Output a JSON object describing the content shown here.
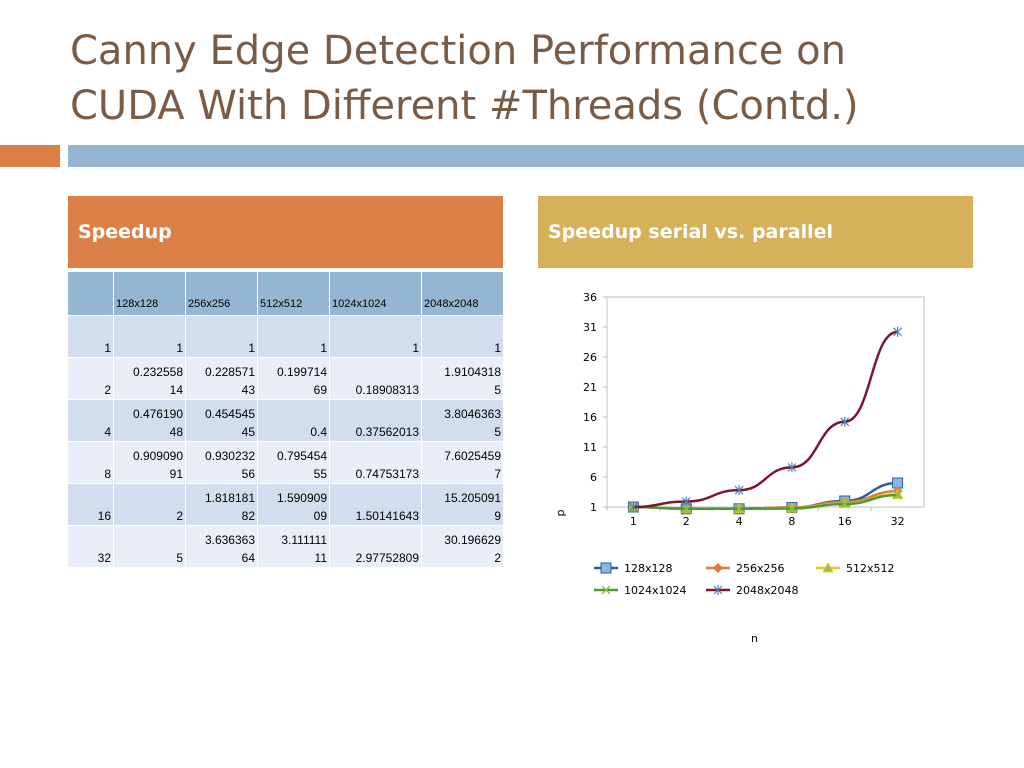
{
  "slide": {
    "title_line1": "Canny Edge Detection Performance on",
    "title_line2": "CUDA With Different #Threads (Contd.)",
    "left_header": "Speedup",
    "right_header": "Speedup serial vs. parallel"
  },
  "table": {
    "columns": [
      "",
      "128x128",
      "256x256",
      "512x512",
      "1024x1024",
      "2048x2048"
    ],
    "rows": [
      [
        "1",
        "1",
        "1",
        "1",
        "1",
        "1"
      ],
      [
        "2",
        "0.232558\n14",
        "0.228571\n43",
        "0.199714\n69",
        "0.18908313",
        "1.9104318\n5"
      ],
      [
        "4",
        "0.476190\n48",
        "0.454545\n45",
        "0.4",
        "0.37562013",
        "3.8046363\n5"
      ],
      [
        "8",
        "0.909090\n91",
        "0.930232\n56",
        "0.795454\n55",
        "0.74753173",
        "7.6025459\n7"
      ],
      [
        "16",
        "2",
        "1.818181\n82",
        "1.590909\n09",
        "1.50141643",
        "15.205091\n9"
      ],
      [
        "32",
        "5",
        "3.636363\n64",
        "3.111111\n11",
        "2.97752809",
        "30.196629\n2"
      ]
    ]
  },
  "chart_data": {
    "type": "line",
    "categories": [
      "1",
      "2",
      "4",
      "8",
      "16",
      "32"
    ],
    "xlabel": "n",
    "ylabel": "p",
    "yticks": [
      1,
      6,
      11,
      16,
      21,
      26,
      31,
      36
    ],
    "ylim": [
      1,
      36
    ],
    "grid": false,
    "legend_position": "bottom",
    "series": [
      {
        "name": "128x128",
        "color": "#2a5f9e",
        "marker": "square",
        "values": [
          1,
          0.23255814,
          0.47619048,
          0.90909091,
          2,
          5
        ]
      },
      {
        "name": "256x256",
        "color": "#e07b39",
        "marker": "diamond",
        "values": [
          1,
          0.22857143,
          0.45454545,
          0.93023256,
          1.81818182,
          3.63636364
        ]
      },
      {
        "name": "512x512",
        "color": "#f0c419",
        "marker": "triangle",
        "values": [
          1,
          0.19971469,
          0.4,
          0.79545455,
          1.59090909,
          3.11111111
        ]
      },
      {
        "name": "1024x1024",
        "color": "#4e9a2f",
        "marker": "x",
        "values": [
          1,
          0.18908313,
          0.37562013,
          0.74753173,
          1.50141643,
          2.97752809
        ]
      },
      {
        "name": "2048x2048",
        "color": "#7b1830",
        "marker": "star",
        "values": [
          1,
          1.91043185,
          3.80463635,
          7.60254597,
          15.2050919,
          30.1966292
        ]
      }
    ]
  }
}
